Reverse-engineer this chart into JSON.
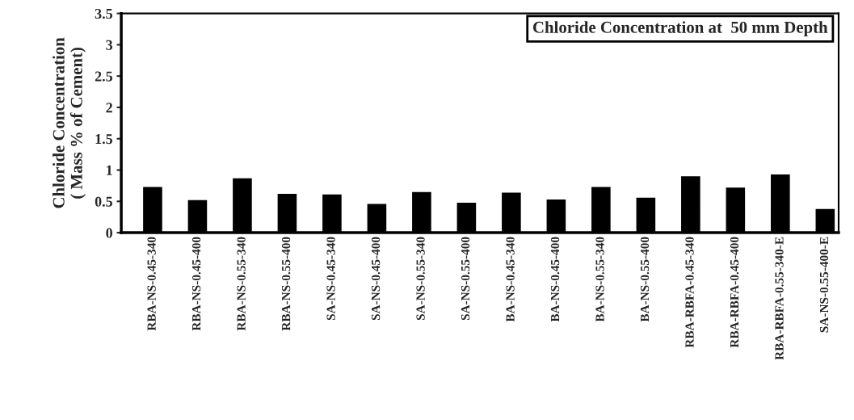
{
  "chart_data": {
    "type": "bar",
    "title": "Chloride Concentration at  50 mm Depth",
    "ylabel": "Chloride Concentration\n( Mass % of Cement)",
    "categories": [
      "RBA-NS-0.45-340",
      "RBA-NS-0.45-400",
      "RBA-NS-0.55-340",
      "RBA-NS-0.55-400",
      "SA-NS-0.45-340",
      "SA-NS-0.45-400",
      "SA-NS-0.55-340",
      "SA-NS-0.55-400",
      "BA-NS-0.45-340",
      "BA-NS-0.45-400",
      "BA-NS-0.55-340",
      "BA-NS-0.55-400",
      "RBA-RBFA-0.45-340",
      "RBA-RBFA-0.45-400",
      "RBA-RBFA-0.55-340-E",
      "SA-NS-0.55-400-E"
    ],
    "values": [
      0.72,
      0.51,
      0.86,
      0.61,
      0.6,
      0.45,
      0.64,
      0.47,
      0.63,
      0.52,
      0.72,
      0.55,
      0.89,
      0.71,
      0.92,
      0.37
    ],
    "color": "#000000",
    "ylim": [
      0,
      3.5
    ],
    "yticks": [
      0,
      0.5,
      1,
      1.5,
      2,
      2.5,
      3,
      3.5
    ],
    "grid": false
  }
}
